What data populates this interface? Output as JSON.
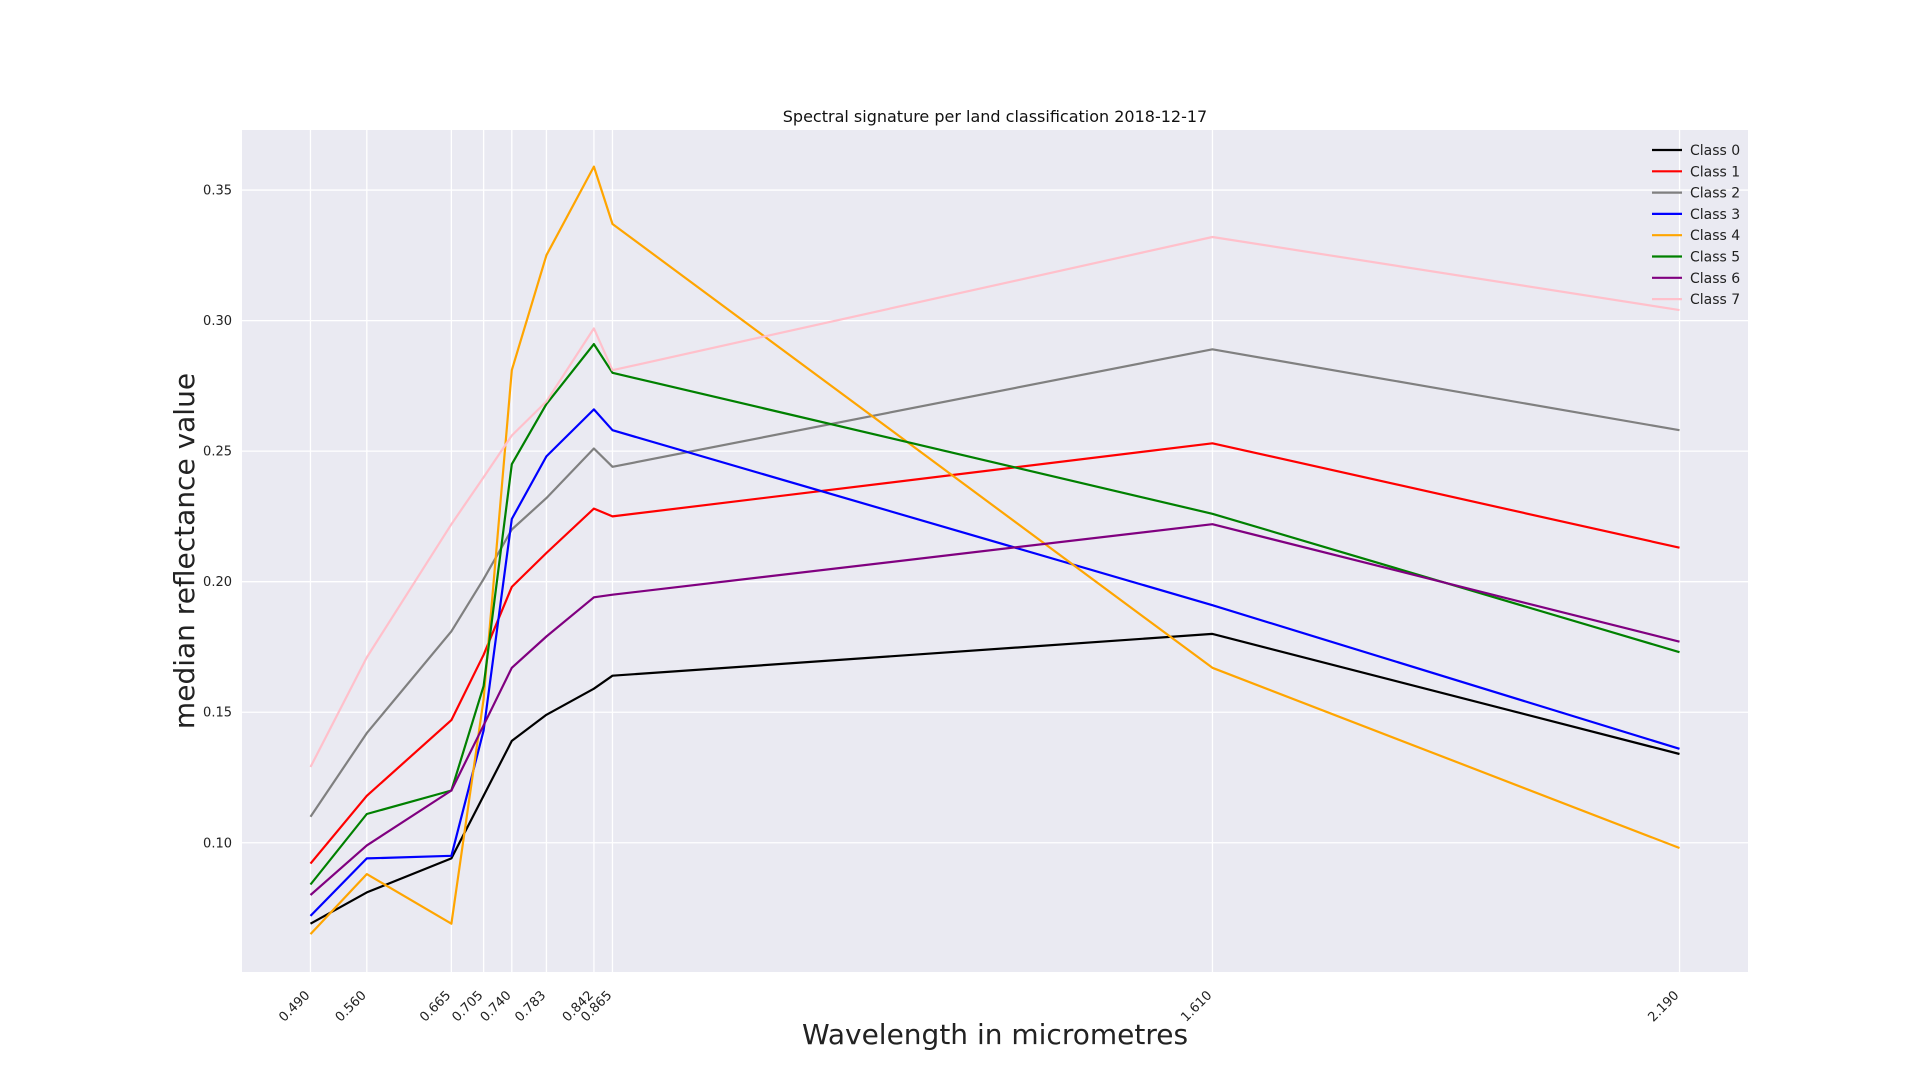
{
  "chart_data": {
    "type": "line",
    "title": "Spectral signature per land classification 2018-12-17",
    "xlabel": "Wavelength in micrometres",
    "ylabel": "median reflectance value",
    "x": [
      0.49,
      0.56,
      0.665,
      0.705,
      0.74,
      0.783,
      0.842,
      0.865,
      1.61,
      2.19
    ],
    "x_tick_labels": [
      "0.490",
      "0.560",
      "0.665",
      "0.705",
      "0.740",
      "0.783",
      "0.842",
      "0.865",
      "1.610",
      "2.190"
    ],
    "y_ticks": [
      0.1,
      0.15,
      0.2,
      0.25,
      0.3,
      0.35
    ],
    "y_tick_labels": [
      "0.10",
      "0.15",
      "0.20",
      "0.25",
      "0.30",
      "0.35"
    ],
    "xlim": [
      0.405,
      2.275
    ],
    "ylim": [
      0.0505,
      0.373
    ],
    "grid": true,
    "legend_position": "top-right",
    "background_color": "#eaeaf2",
    "series": [
      {
        "name": "Class 0",
        "color": "#000000",
        "values": [
          0.069,
          0.081,
          0.094,
          0.118,
          0.139,
          0.149,
          0.159,
          0.164,
          0.18,
          0.134
        ]
      },
      {
        "name": "Class 1",
        "color": "#ff0000",
        "values": [
          0.092,
          0.118,
          0.147,
          0.172,
          0.198,
          0.211,
          0.228,
          0.225,
          0.253,
          0.213
        ]
      },
      {
        "name": "Class 2",
        "color": "#808080",
        "values": [
          0.11,
          0.142,
          0.181,
          0.201,
          0.22,
          0.232,
          0.251,
          0.244,
          0.289,
          0.258
        ]
      },
      {
        "name": "Class 3",
        "color": "#0000ff",
        "values": [
          0.072,
          0.094,
          0.095,
          0.143,
          0.224,
          0.248,
          0.266,
          0.258,
          0.191,
          0.136
        ]
      },
      {
        "name": "Class 4",
        "color": "#ffa500",
        "values": [
          0.065,
          0.088,
          0.069,
          0.155,
          0.281,
          0.325,
          0.359,
          0.337,
          0.167,
          0.098
        ]
      },
      {
        "name": "Class 5",
        "color": "#008000",
        "values": [
          0.084,
          0.111,
          0.12,
          0.16,
          0.245,
          0.268,
          0.291,
          0.28,
          0.226,
          0.173
        ]
      },
      {
        "name": "Class 6",
        "color": "#800080",
        "values": [
          0.08,
          0.099,
          0.12,
          0.145,
          0.167,
          0.179,
          0.194,
          0.195,
          0.222,
          0.177
        ]
      },
      {
        "name": "Class 7",
        "color": "#ffc0cb",
        "values": [
          0.129,
          0.171,
          0.222,
          0.24,
          0.256,
          0.269,
          0.297,
          0.281,
          0.332,
          0.304
        ]
      }
    ]
  }
}
